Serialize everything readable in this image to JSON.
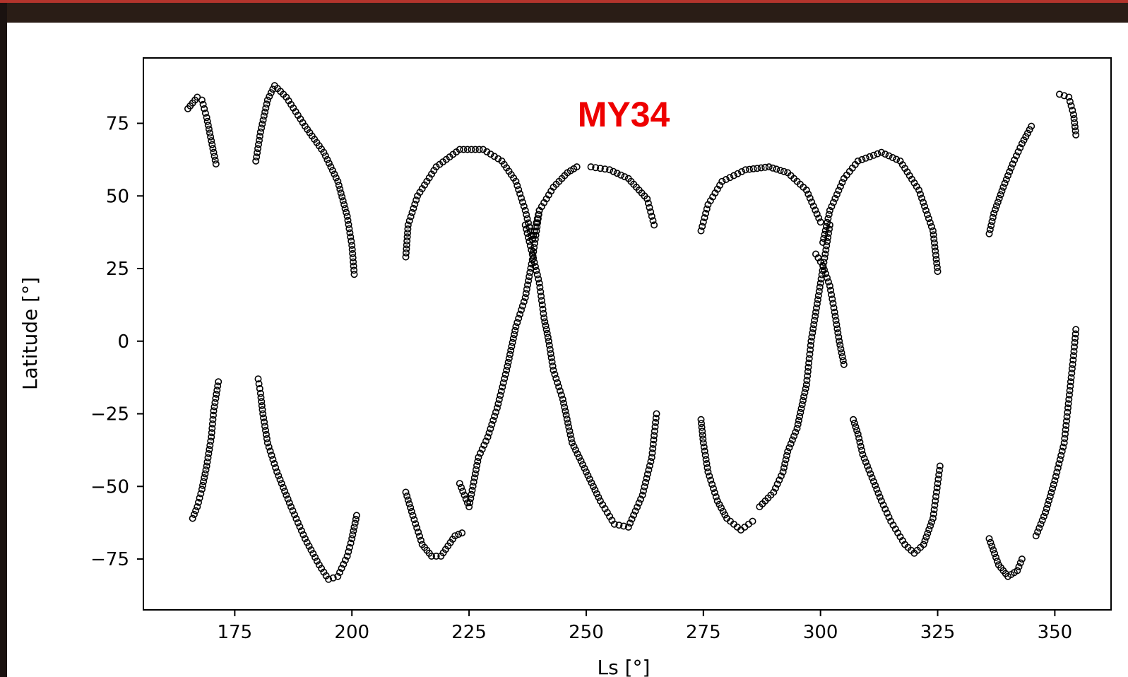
{
  "colors": {
    "frame_bg": "#2a1d16",
    "frame_accent": "#b3342c",
    "marker": "#000000",
    "annotation": "#ee0000"
  },
  "chart_data": {
    "type": "scatter",
    "title": "",
    "xlabel": "Ls [°]",
    "ylabel": "Latitude [°]",
    "annotation": "MY34",
    "xlim": [
      155.5,
      362
    ],
    "ylim": [
      -92.5,
      97.5
    ],
    "xticks": [
      175,
      200,
      225,
      250,
      275,
      300,
      325,
      350
    ],
    "xtick_labels": [
      "175",
      "200",
      "225",
      "250",
      "275",
      "300",
      "325",
      "350"
    ],
    "yticks": [
      75,
      50,
      25,
      0,
      -25,
      -50,
      -75
    ],
    "ytick_labels": [
      "75",
      "50",
      "25",
      "0",
      "−25",
      "−50",
      "−75"
    ],
    "grid": false,
    "marker": "open-circle",
    "segments": [
      {
        "name": "",
        "points": [
          [
            165,
            80
          ],
          [
            166,
            82
          ],
          [
            167,
            84
          ],
          [
            168,
            83
          ],
          [
            169,
            77
          ],
          [
            170,
            69
          ],
          [
            171,
            61
          ]
        ]
      },
      {
        "name": "",
        "points": [
          [
            179.5,
            62
          ],
          [
            180.5,
            72
          ],
          [
            182,
            83
          ],
          [
            183.5,
            88
          ],
          [
            186,
            84
          ],
          [
            190,
            74
          ],
          [
            194,
            65
          ],
          [
            197,
            55
          ],
          [
            199,
            43
          ],
          [
            200,
            33
          ],
          [
            200.5,
            23
          ]
        ]
      },
      {
        "name": "",
        "points": [
          [
            211.5,
            29
          ],
          [
            212,
            40
          ],
          [
            214,
            50
          ],
          [
            218,
            60
          ],
          [
            223,
            66
          ],
          [
            228,
            66
          ],
          [
            232,
            62
          ],
          [
            235,
            55
          ],
          [
            237,
            45
          ],
          [
            238.5,
            35
          ]
        ]
      },
      {
        "name": "",
        "points": [
          [
            238.5,
            35
          ],
          [
            240,
            45
          ],
          [
            243,
            53
          ],
          [
            246,
            58
          ],
          [
            248,
            60
          ]
        ]
      },
      {
        "name": "",
        "points": [
          [
            251,
            60
          ],
          [
            255,
            59
          ],
          [
            259,
            56
          ],
          [
            263,
            49
          ],
          [
            264.5,
            40
          ]
        ]
      },
      {
        "name": "",
        "points": [
          [
            274.5,
            38
          ],
          [
            276,
            47
          ],
          [
            279,
            55
          ],
          [
            284,
            59
          ],
          [
            289,
            60
          ],
          [
            293,
            58
          ],
          [
            297,
            52
          ],
          [
            300,
            41
          ]
        ]
      },
      {
        "name": "",
        "points": [
          [
            300.5,
            34
          ],
          [
            302,
            45
          ],
          [
            305,
            56
          ],
          [
            308,
            62
          ],
          [
            313,
            65
          ],
          [
            317,
            62
          ],
          [
            321,
            52
          ],
          [
            324,
            38
          ],
          [
            325,
            24
          ]
        ]
      },
      {
        "name": "",
        "points": [
          [
            336,
            37
          ],
          [
            337,
            44
          ],
          [
            339,
            53
          ],
          [
            341,
            61
          ],
          [
            343,
            68
          ],
          [
            345,
            74
          ]
        ]
      },
      {
        "name": "",
        "points": [
          [
            351,
            85
          ],
          [
            353,
            84
          ],
          [
            354,
            78
          ],
          [
            354.5,
            71
          ]
        ]
      },
      {
        "name": "",
        "points": [
          [
            166,
            -61
          ],
          [
            167,
            -57
          ],
          [
            168,
            -51
          ],
          [
            169,
            -43
          ],
          [
            170,
            -33
          ],
          [
            170.5,
            -24
          ],
          [
            171.5,
            -14
          ]
        ]
      },
      {
        "name": "",
        "points": [
          [
            180,
            -13
          ],
          [
            180.5,
            -18
          ],
          [
            181,
            -25
          ],
          [
            182,
            -35
          ],
          [
            184,
            -45
          ],
          [
            187,
            -57
          ],
          [
            190,
            -68
          ],
          [
            193,
            -77
          ],
          [
            195,
            -82
          ],
          [
            197,
            -81
          ],
          [
            199,
            -74
          ],
          [
            200,
            -68
          ],
          [
            201,
            -60
          ]
        ]
      },
      {
        "name": "",
        "points": [
          [
            211.5,
            -52
          ],
          [
            213,
            -60
          ],
          [
            215,
            -70
          ],
          [
            217,
            -74
          ],
          [
            219,
            -74
          ],
          [
            222,
            -67
          ],
          [
            223.5,
            -66
          ]
        ]
      },
      {
        "name": "",
        "points": [
          [
            223,
            -49
          ],
          [
            225,
            -57
          ],
          [
            227,
            -40
          ],
          [
            229,
            -33
          ],
          [
            231,
            -23
          ],
          [
            233,
            -10
          ],
          [
            235,
            5
          ],
          [
            237,
            15
          ],
          [
            238.5,
            28
          ],
          [
            240,
            45
          ]
        ]
      },
      {
        "name": "",
        "points": [
          [
            237,
            40
          ],
          [
            238.5,
            30
          ],
          [
            240,
            20
          ],
          [
            241,
            8
          ],
          [
            242,
            0
          ],
          [
            243,
            -10
          ],
          [
            245,
            -20
          ],
          [
            247,
            -35
          ],
          [
            250,
            -45
          ],
          [
            253,
            -55
          ],
          [
            256,
            -63
          ],
          [
            259,
            -64
          ],
          [
            262,
            -53
          ],
          [
            264,
            -40
          ],
          [
            265,
            -25
          ]
        ]
      },
      {
        "name": "",
        "points": [
          [
            274.5,
            -27
          ],
          [
            275,
            -35
          ],
          [
            276,
            -45
          ],
          [
            278,
            -55
          ],
          [
            280,
            -61
          ],
          [
            283,
            -65
          ],
          [
            285.5,
            -62
          ]
        ]
      },
      {
        "name": "",
        "points": [
          [
            287,
            -57
          ],
          [
            290,
            -52
          ],
          [
            292,
            -45
          ],
          [
            293,
            -38
          ],
          [
            295,
            -30
          ],
          [
            297,
            -15
          ],
          [
            298,
            0
          ],
          [
            299,
            10
          ],
          [
            300,
            20
          ],
          [
            301,
            30
          ],
          [
            302,
            40
          ]
        ]
      },
      {
        "name": "",
        "points": [
          [
            299,
            30
          ],
          [
            300.5,
            26
          ],
          [
            302,
            19
          ],
          [
            303,
            10
          ],
          [
            304,
            0
          ],
          [
            305,
            -8
          ]
        ]
      },
      {
        "name": "",
        "points": [
          [
            307,
            -27
          ],
          [
            308,
            -32
          ],
          [
            309,
            -39
          ],
          [
            311,
            -47
          ],
          [
            313,
            -55
          ],
          [
            315,
            -62
          ],
          [
            318,
            -70
          ],
          [
            320,
            -73
          ],
          [
            322,
            -70
          ],
          [
            324,
            -61
          ],
          [
            325,
            -49
          ],
          [
            325.5,
            -43
          ]
        ]
      },
      {
        "name": "",
        "points": [
          [
            336,
            -68
          ],
          [
            338,
            -77
          ],
          [
            340,
            -81
          ],
          [
            342,
            -79
          ],
          [
            343,
            -75
          ]
        ]
      },
      {
        "name": "",
        "points": [
          [
            346,
            -67
          ],
          [
            348,
            -59
          ],
          [
            350,
            -48
          ],
          [
            352,
            -35
          ],
          [
            353,
            -20
          ],
          [
            354,
            -5
          ],
          [
            354.5,
            4
          ]
        ]
      }
    ]
  }
}
